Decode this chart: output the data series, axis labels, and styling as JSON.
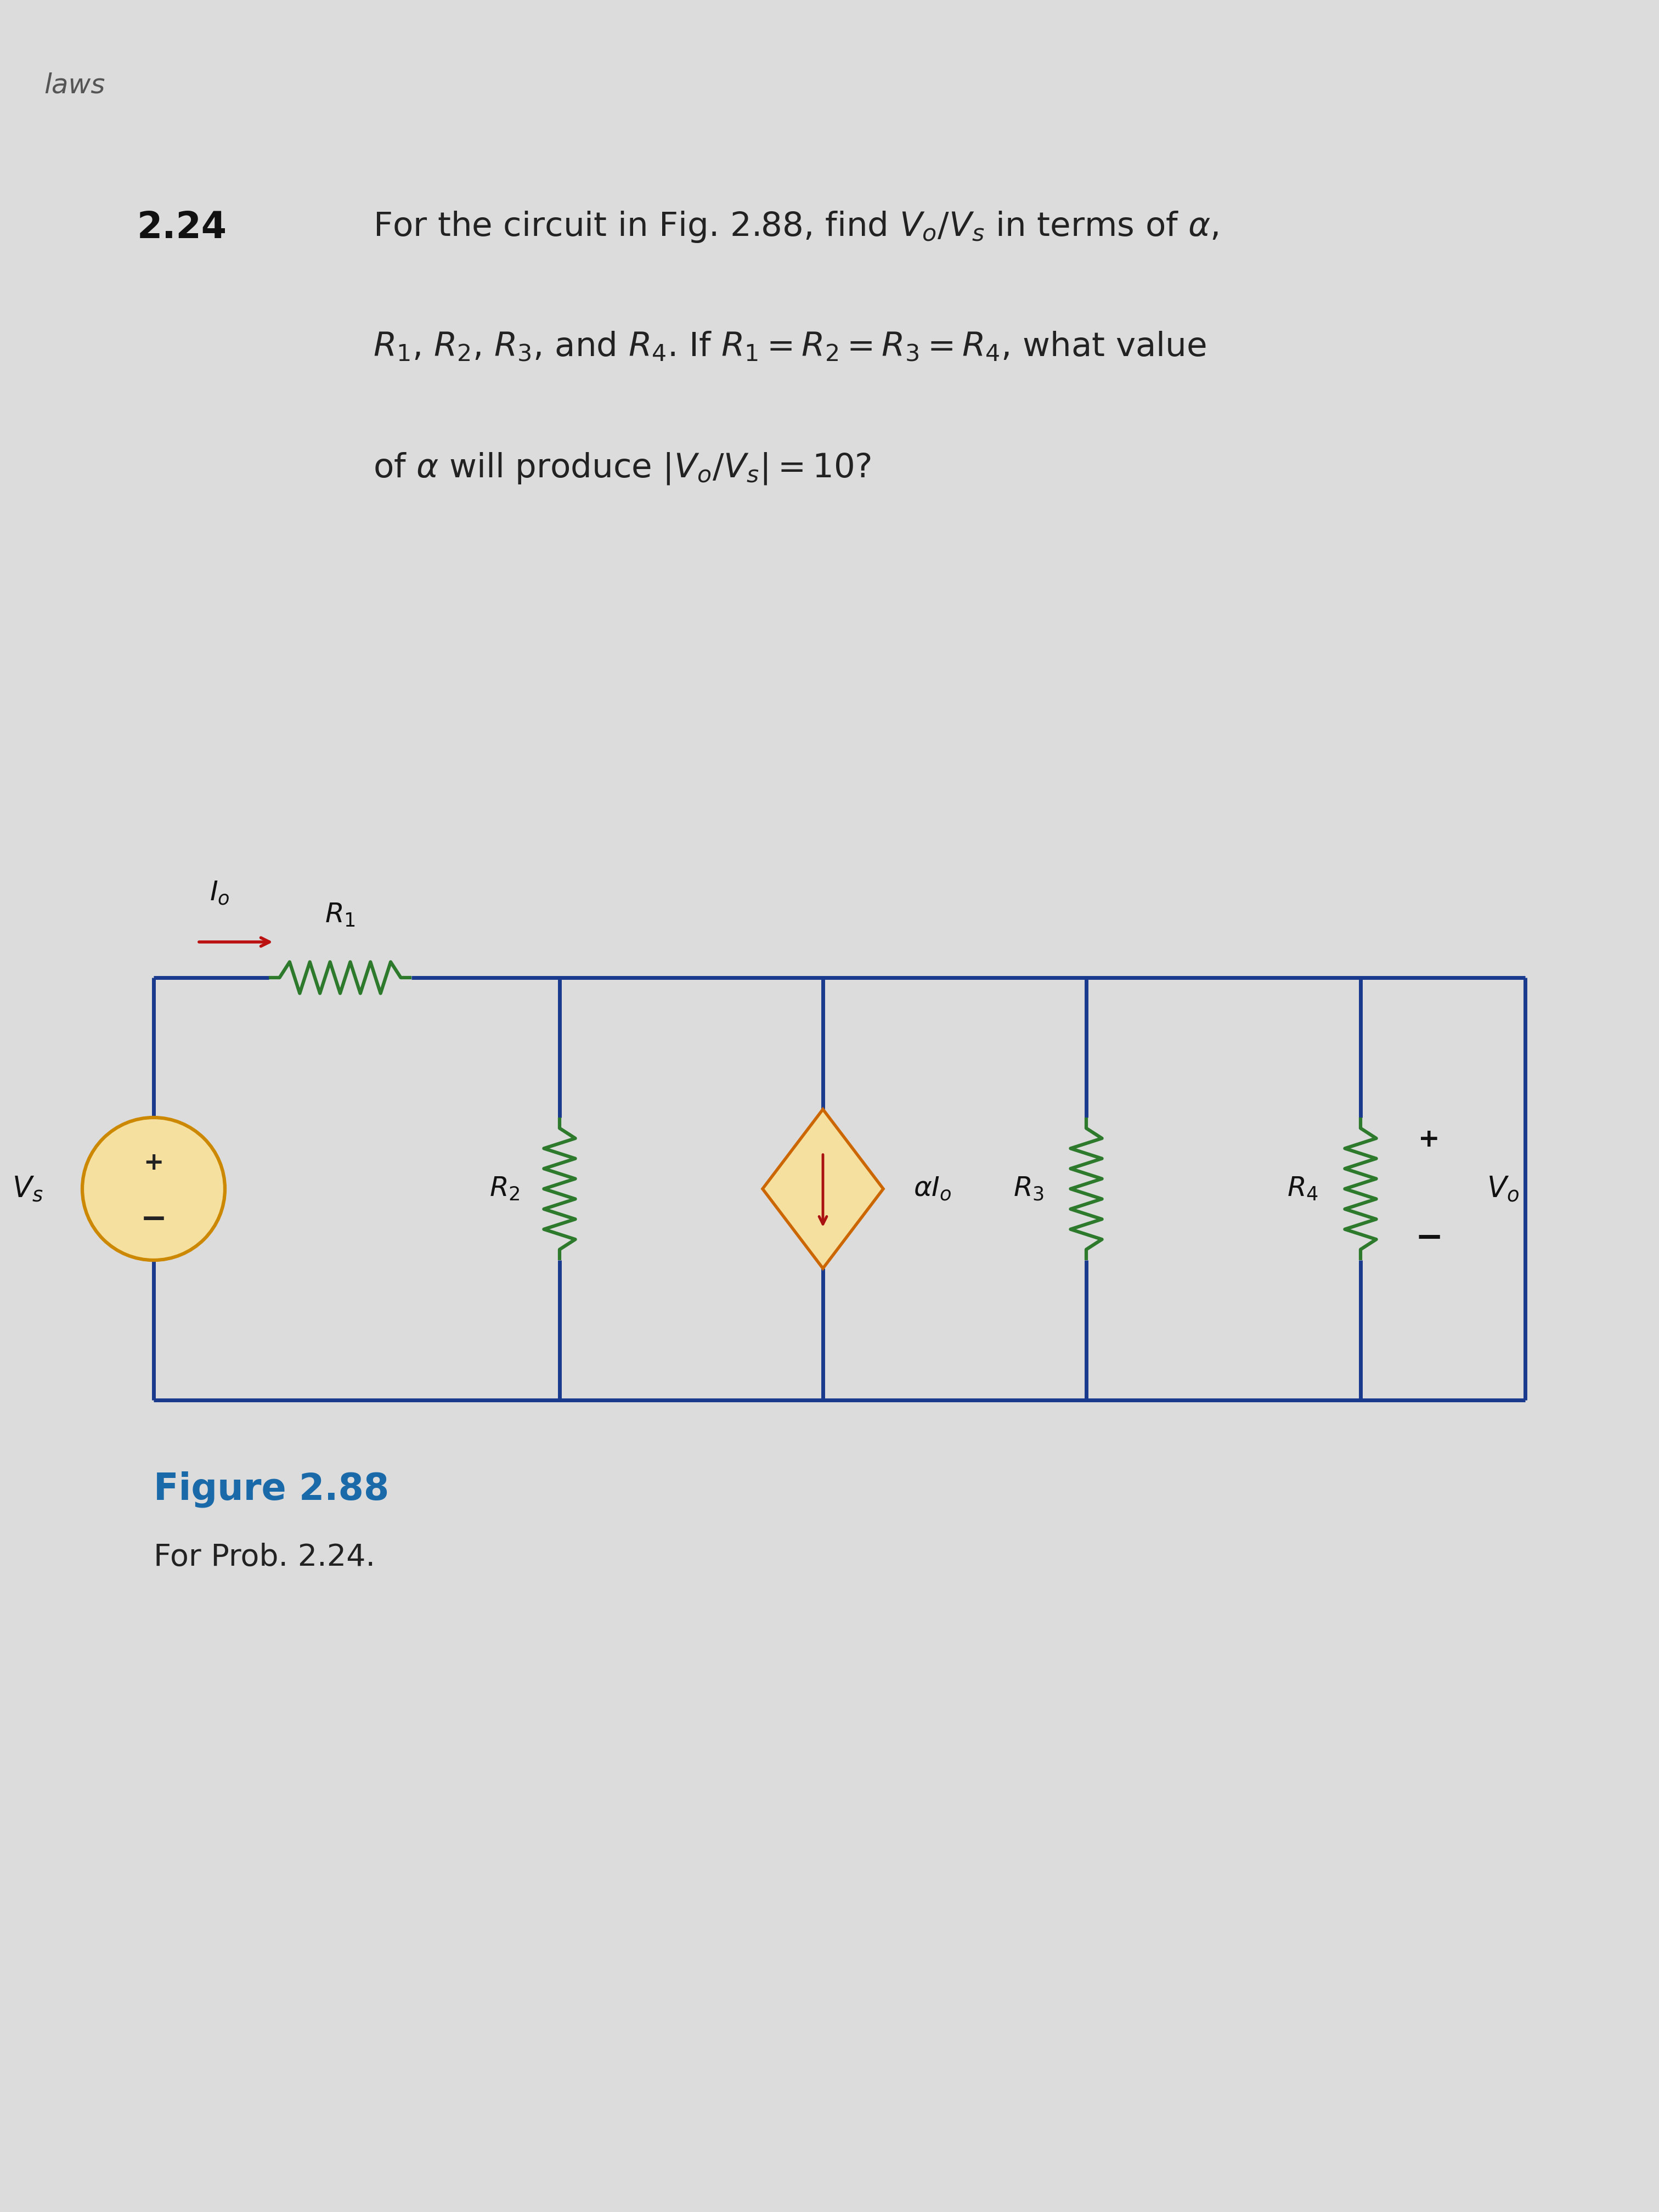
{
  "bg_color": "#e0e0e0",
  "wire_color": "#1a3a8e",
  "resistor_color": "#2d7a2d",
  "vs_color": "#cc8800",
  "cs_fill": "#f5e0a0",
  "cs_border": "#cc6600",
  "cs_arrow": "#aa1111",
  "io_arrow": "#bb1111",
  "fig_title_color": "#1a6aaa",
  "text_color": "#222222",
  "label_color": "#111111",
  "laws_color": "#555555",
  "lws_text": "laws",
  "prob_num": "2.24",
  "line1": "For the circuit in Fig. 2.88, find $V_o/V_s$ in terms of $\\alpha$,",
  "line2": "$R_1$, $R_2$, $R_3$, and $R_4$. If $R_1 = R_2 = R_3 = R_4$, what value",
  "line3": "of $\\alpha$ will produce $|V_o/V_s| = 10$?",
  "fig_cap1": "Figure 2.88",
  "fig_cap2": "For Prob. 2.24."
}
